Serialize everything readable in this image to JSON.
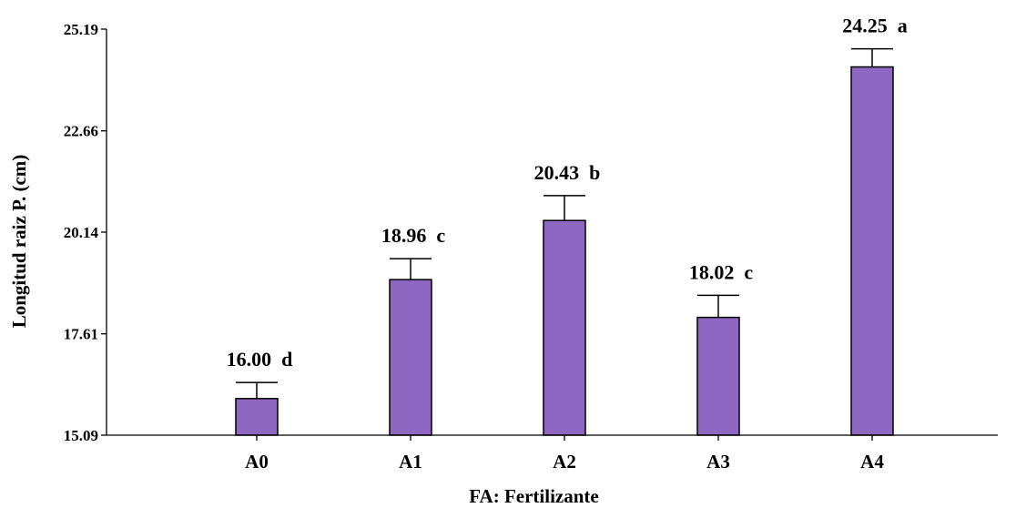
{
  "chart_data": {
    "type": "bar",
    "categories": [
      "A0",
      "A1",
      "A2",
      "A3",
      "A4"
    ],
    "values": [
      16.0,
      18.96,
      20.43,
      18.02,
      24.25
    ],
    "errors": [
      0.4,
      0.52,
      0.62,
      0.55,
      0.45
    ],
    "letters": [
      "d",
      "c",
      "b",
      "c",
      "a"
    ],
    "data_labels": [
      "16.00  d",
      "18.96  c",
      "20.43  b",
      "18.02  c",
      "24.25  a"
    ],
    "xlabel": "FA: Fertilizante",
    "ylabel": "Longitud raiz P. (cm)",
    "ylim": [
      15.09,
      25.19
    ],
    "yticks": [
      15.09,
      17.61,
      20.14,
      22.66,
      25.19
    ],
    "ytick_labels": [
      "15.09",
      "17.61",
      "20.14",
      "22.66",
      "25.19"
    ],
    "bar_color": "#8e67c2",
    "grid": false,
    "legend": "none"
  }
}
